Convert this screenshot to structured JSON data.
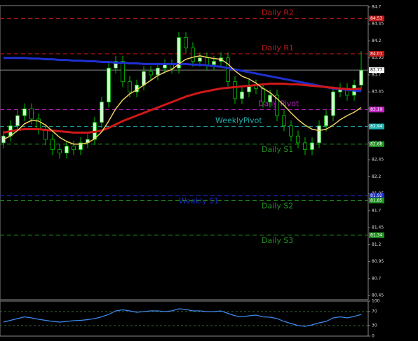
{
  "chart_data": {
    "type": "candlestick",
    "candles": {
      "open": [
        82.7,
        82.8,
        82.95,
        83.1,
        83.2,
        83.05,
        82.9,
        82.75,
        82.6,
        82.55,
        82.65,
        82.6,
        82.7,
        82.75,
        83.0,
        83.3,
        83.8,
        83.9,
        83.6,
        83.45,
        83.55,
        83.75,
        83.7,
        83.8,
        83.85,
        83.8,
        84.25,
        84.1,
        83.9,
        83.95,
        83.85,
        83.9,
        83.95,
        83.6,
        83.35,
        83.45,
        83.55,
        83.5,
        83.3,
        83.4,
        83.1,
        82.95,
        82.8,
        82.7,
        82.6,
        82.7,
        82.95,
        83.1,
        83.45,
        83.5,
        83.4,
        83.55
      ],
      "high": [
        82.88,
        83.03,
        83.18,
        83.28,
        83.28,
        83.13,
        82.98,
        82.83,
        82.68,
        82.73,
        82.73,
        82.78,
        82.83,
        83.08,
        83.38,
        83.88,
        83.98,
        83.98,
        83.68,
        83.63,
        83.83,
        83.83,
        83.88,
        83.93,
        83.93,
        84.33,
        84.33,
        84.18,
        84.03,
        84.03,
        83.98,
        84.03,
        84.03,
        83.68,
        83.53,
        83.63,
        83.63,
        83.58,
        83.48,
        83.48,
        83.18,
        83.03,
        82.88,
        82.78,
        82.78,
        83.03,
        83.18,
        83.53,
        83.58,
        83.58,
        83.63,
        84.05
      ],
      "low": [
        82.62,
        82.72,
        82.87,
        83.02,
        82.97,
        82.82,
        82.67,
        82.52,
        82.47,
        82.47,
        82.52,
        82.52,
        82.62,
        82.67,
        82.92,
        83.22,
        83.72,
        83.52,
        83.37,
        83.37,
        83.47,
        83.62,
        83.62,
        83.72,
        83.72,
        83.72,
        84.02,
        83.82,
        83.82,
        83.77,
        83.77,
        83.82,
        83.52,
        83.27,
        83.27,
        83.37,
        83.42,
        83.22,
        83.22,
        83.02,
        82.87,
        82.72,
        82.62,
        82.52,
        82.52,
        82.62,
        82.87,
        83.02,
        83.37,
        83.32,
        83.32,
        83.47
      ],
      "close": [
        82.8,
        82.95,
        83.1,
        83.2,
        83.05,
        82.9,
        82.75,
        82.6,
        82.55,
        82.65,
        82.6,
        82.7,
        82.75,
        83.0,
        83.3,
        83.8,
        83.9,
        83.6,
        83.45,
        83.55,
        83.75,
        83.7,
        83.8,
        83.85,
        83.8,
        84.25,
        84.1,
        83.9,
        83.95,
        83.85,
        83.9,
        83.95,
        83.6,
        83.35,
        83.45,
        83.55,
        83.5,
        83.3,
        83.4,
        83.1,
        82.95,
        82.8,
        82.7,
        82.6,
        82.7,
        82.95,
        83.1,
        83.45,
        83.5,
        83.4,
        83.55,
        83.77
      ]
    },
    "bull_color": "#ccffcc",
    "bear_color": "#000000",
    "candle_stroke": "#00c000",
    "overlays": [
      {
        "color": "#1f2fd0",
        "values": [
          83.95,
          83.95,
          83.95,
          83.95,
          83.94,
          83.94,
          83.93,
          83.93,
          83.92,
          83.92,
          83.91,
          83.91,
          83.9,
          83.9,
          83.89,
          83.89,
          83.88,
          83.88,
          83.87,
          83.87,
          83.86,
          83.86,
          83.86,
          83.86,
          83.86,
          83.86,
          83.86,
          83.85,
          83.85,
          83.84,
          83.83,
          83.82,
          83.8,
          83.78,
          83.76,
          83.74,
          83.72,
          83.7,
          83.68,
          83.66,
          83.64,
          83.62,
          83.6,
          83.58,
          83.56,
          83.54,
          83.52,
          83.5,
          83.49,
          83.48,
          83.47,
          83.46
        ]
      },
      {
        "color": "#d01818",
        "values": [
          82.85,
          82.87,
          82.89,
          82.9,
          82.9,
          82.9,
          82.89,
          82.88,
          82.87,
          82.86,
          82.85,
          82.85,
          82.85,
          82.86,
          82.88,
          82.92,
          82.97,
          83.02,
          83.06,
          83.1,
          83.14,
          83.18,
          83.22,
          83.26,
          83.3,
          83.34,
          83.38,
          83.41,
          83.44,
          83.46,
          83.48,
          83.5,
          83.51,
          83.52,
          83.53,
          83.54,
          83.55,
          83.56,
          83.57,
          83.57,
          83.57,
          83.56,
          83.56,
          83.55,
          83.54,
          83.53,
          83.52,
          83.51,
          83.5,
          83.49,
          83.49,
          83.5
        ]
      },
      {
        "color": "#f0d060",
        "values": [
          82.75,
          82.8,
          82.88,
          82.98,
          83.03,
          83.02,
          82.96,
          82.87,
          82.78,
          82.72,
          82.68,
          82.68,
          82.7,
          82.76,
          82.86,
          83.02,
          83.2,
          83.33,
          83.42,
          83.48,
          83.55,
          83.62,
          83.69,
          83.74,
          83.78,
          83.86,
          83.93,
          83.96,
          83.98,
          83.96,
          83.94,
          83.93,
          83.86,
          83.76,
          83.68,
          83.64,
          83.58,
          83.5,
          83.44,
          83.35,
          83.25,
          83.14,
          83.04,
          82.96,
          82.9,
          82.88,
          82.9,
          82.96,
          83.04,
          83.1,
          83.15,
          83.22
        ]
      }
    ],
    "levels": [
      {
        "name": "Daily R2",
        "value": 84.53,
        "color": "#c01818"
      },
      {
        "name": "Daily R1",
        "value": 84.01,
        "color": "#c01818"
      },
      {
        "name": "Daily Pivot",
        "value": 83.19,
        "color": "#c020c0"
      },
      {
        "name": "WeeklyPivot",
        "value": 82.94,
        "color": "#20b0b0"
      },
      {
        "name": "Daily S1",
        "value": 82.68,
        "color": "#209020"
      },
      {
        "name": "Weekly S1",
        "value": 81.92,
        "color": "#1828c0"
      },
      {
        "name": "Daily S2",
        "value": 81.85,
        "color": "#209020"
      },
      {
        "name": "Daily S3",
        "value": 81.34,
        "color": "#209020"
      }
    ],
    "last_price": 83.77,
    "ylim": [
      80.39,
      84.72
    ],
    "yticks": [
      84.7,
      84.45,
      84.2,
      83.95,
      83.7,
      83.45,
      83.2,
      82.95,
      82.7,
      82.45,
      82.2,
      81.95,
      81.7,
      81.45,
      81.2,
      80.95,
      80.7,
      80.45
    ],
    "oscillator": {
      "color": "#3c8cf0",
      "values": [
        40,
        45,
        50,
        55,
        52,
        48,
        45,
        42,
        40,
        42,
        44,
        45,
        47,
        50,
        55,
        62,
        72,
        75,
        72,
        68,
        70,
        72,
        72,
        70,
        72,
        78,
        76,
        72,
        72,
        70,
        70,
        72,
        65,
        58,
        55,
        58,
        60,
        55,
        54,
        50,
        42,
        36,
        30,
        28,
        32,
        38,
        42,
        52,
        55,
        52,
        56,
        62
      ],
      "ylim": [
        0,
        100
      ],
      "yticks": [
        100,
        70,
        30,
        0
      ]
    }
  }
}
